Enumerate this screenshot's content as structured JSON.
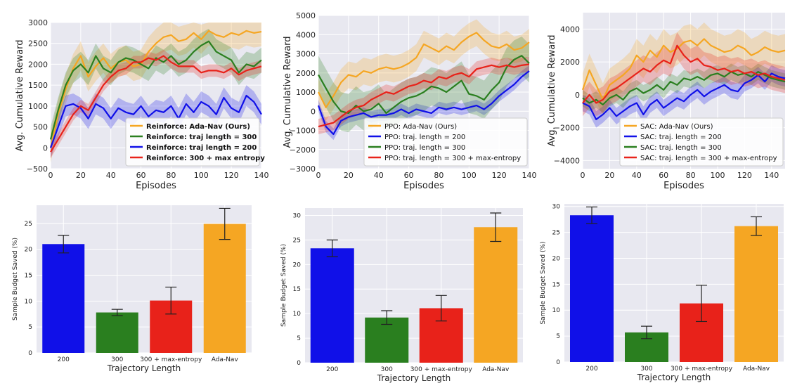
{
  "colors": {
    "adanav": "#f5a623",
    "len200": "#1010e8",
    "len300": "#2a7f1f",
    "maxent": "#e8221a",
    "panel": "#e8e8f0",
    "grid": "#ffffff"
  },
  "chart_data": [
    {
      "type": "line",
      "title": "",
      "xlabel": "Episodes",
      "ylabel": "Avg. Cumulative Reward",
      "xlim": [
        0,
        140
      ],
      "ylim": [
        -500,
        3000
      ],
      "xticks": [
        0,
        20,
        40,
        60,
        80,
        100,
        120,
        140
      ],
      "yticks": [
        -500,
        0,
        500,
        1000,
        1500,
        2000,
        2500,
        3000
      ],
      "legend": "bottom-right",
      "series": [
        {
          "name": "Reinforce: Ada-Nav (Ours)",
          "color": "adanav",
          "band": 350,
          "x": [
            0,
            5,
            10,
            15,
            20,
            25,
            30,
            35,
            40,
            45,
            50,
            55,
            60,
            65,
            70,
            75,
            80,
            85,
            90,
            95,
            100,
            105,
            110,
            115,
            120,
            125,
            130,
            135,
            140
          ],
          "y": [
            0,
            800,
            1400,
            1900,
            2200,
            1700,
            1950,
            2150,
            1900,
            2050,
            2100,
            1950,
            2000,
            2300,
            2500,
            2650,
            2700,
            2550,
            2600,
            2750,
            2600,
            2800,
            2700,
            2650,
            2750,
            2700,
            2800,
            2750,
            2780
          ]
        },
        {
          "name": "Reinforce: traj length = 300",
          "color": "len300",
          "band": 300,
          "x": [
            0,
            5,
            10,
            15,
            20,
            25,
            30,
            35,
            40,
            45,
            50,
            55,
            60,
            65,
            70,
            75,
            80,
            85,
            90,
            95,
            100,
            105,
            110,
            115,
            120,
            125,
            130,
            135,
            140
          ],
          "y": [
            200,
            900,
            1500,
            1850,
            2000,
            1800,
            2200,
            1900,
            1800,
            2050,
            2150,
            2100,
            2000,
            1900,
            2150,
            2050,
            2200,
            2000,
            2100,
            2300,
            2450,
            2550,
            2300,
            2200,
            2100,
            1800,
            2000,
            1950,
            2100
          ]
        },
        {
          "name": "Reinforce:  traj length = 200",
          "color": "len200",
          "band": 250,
          "x": [
            0,
            5,
            10,
            15,
            20,
            25,
            30,
            35,
            40,
            45,
            50,
            55,
            60,
            65,
            70,
            75,
            80,
            85,
            90,
            95,
            100,
            105,
            110,
            115,
            120,
            125,
            130,
            135,
            140
          ],
          "y": [
            0,
            500,
            1000,
            1050,
            950,
            700,
            1050,
            950,
            700,
            950,
            850,
            800,
            1000,
            750,
            900,
            850,
            1000,
            700,
            1050,
            850,
            1100,
            1000,
            800,
            1200,
            950,
            850,
            1250,
            1100,
            800
          ]
        },
        {
          "name": "Reinforce: 300 + max entropy",
          "color": "maxent",
          "band": 150,
          "x": [
            0,
            5,
            10,
            15,
            20,
            25,
            30,
            35,
            40,
            45,
            50,
            55,
            60,
            65,
            70,
            75,
            80,
            85,
            90,
            95,
            100,
            105,
            110,
            115,
            120,
            125,
            130,
            135,
            140
          ],
          "y": [
            -100,
            200,
            500,
            800,
            1000,
            900,
            1200,
            1500,
            1700,
            1850,
            1900,
            2050,
            2050,
            2150,
            2100,
            2200,
            2050,
            1950,
            1950,
            1950,
            1800,
            1850,
            1850,
            1800,
            1900,
            1750,
            1850,
            1900,
            1950
          ]
        }
      ]
    },
    {
      "type": "line",
      "title": "",
      "xlabel": "Episodes",
      "ylabel": "Avg. Cumulative Reward",
      "xlim": [
        0,
        140
      ],
      "ylim": [
        -3000,
        5000
      ],
      "xticks": [
        0,
        20,
        40,
        60,
        80,
        100,
        120,
        140
      ],
      "yticks": [
        -3000,
        -2000,
        -1000,
        0,
        1000,
        2000,
        3000,
        4000,
        5000
      ],
      "legend": "bottom-right",
      "series": [
        {
          "name": "PPO: Ada-Nav (Ours)",
          "color": "adanav",
          "band": 700,
          "x": [
            0,
            5,
            10,
            15,
            20,
            25,
            30,
            35,
            40,
            45,
            50,
            55,
            60,
            65,
            70,
            75,
            80,
            85,
            90,
            95,
            100,
            105,
            110,
            115,
            120,
            125,
            130,
            135,
            140
          ],
          "y": [
            1000,
            200,
            800,
            1500,
            1900,
            1800,
            2100,
            2000,
            2200,
            2300,
            2200,
            2300,
            2500,
            2800,
            3500,
            3300,
            3100,
            3400,
            3200,
            3600,
            3900,
            4100,
            3700,
            3400,
            3300,
            3500,
            3200,
            3300,
            3600
          ]
        },
        {
          "name": "PPO: traj. length = 200",
          "color": "len200",
          "band": 300,
          "x": [
            0,
            5,
            10,
            15,
            20,
            25,
            30,
            35,
            40,
            45,
            50,
            55,
            60,
            65,
            70,
            75,
            80,
            85,
            90,
            95,
            100,
            105,
            110,
            115,
            120,
            125,
            130,
            135,
            140
          ],
          "y": [
            300,
            -800,
            -1200,
            -500,
            -300,
            -200,
            -100,
            -300,
            -200,
            -200,
            -100,
            100,
            -100,
            100,
            0,
            -100,
            200,
            100,
            200,
            100,
            200,
            300,
            100,
            400,
            800,
            1100,
            1400,
            1800,
            2100
          ]
        },
        {
          "name": "PPO: traj. length = 300",
          "color": "len300",
          "band": 1000,
          "x": [
            0,
            5,
            10,
            15,
            20,
            25,
            30,
            35,
            40,
            45,
            50,
            55,
            60,
            65,
            70,
            75,
            80,
            85,
            90,
            95,
            100,
            105,
            110,
            115,
            120,
            125,
            130,
            135,
            140
          ],
          "y": [
            1900,
            1200,
            500,
            0,
            -100,
            300,
            0,
            100,
            400,
            -100,
            200,
            500,
            700,
            800,
            1000,
            1300,
            1200,
            1000,
            1300,
            1600,
            900,
            800,
            600,
            1100,
            1500,
            2300,
            2700,
            2900,
            2500
          ]
        },
        {
          "name": "PPO:  traj. length = 300 + max-entropy",
          "color": "maxent",
          "band": 400,
          "x": [
            0,
            5,
            10,
            15,
            20,
            25,
            30,
            35,
            40,
            45,
            50,
            55,
            60,
            65,
            70,
            75,
            80,
            85,
            90,
            95,
            100,
            105,
            110,
            115,
            120,
            125,
            130,
            135,
            140
          ],
          "y": [
            -800,
            -700,
            -600,
            -300,
            0,
            200,
            300,
            600,
            800,
            1000,
            900,
            1100,
            1300,
            1400,
            1600,
            1500,
            1800,
            1700,
            1900,
            2000,
            1800,
            2200,
            2300,
            2400,
            2300,
            2400,
            2300,
            2400,
            2450
          ]
        }
      ]
    },
    {
      "type": "line",
      "title": "",
      "xlabel": "Episodes",
      "ylabel": "Avg. Cumulative Reward",
      "xlim": [
        0,
        150
      ],
      "ylim": [
        -4500,
        5000
      ],
      "xticks": [
        0,
        20,
        40,
        60,
        80,
        100,
        120,
        140
      ],
      "yticks": [
        -4000,
        -2000,
        0,
        2000,
        4000
      ],
      "legend": "bottom-right",
      "series": [
        {
          "name": "SAC: Ada-Nav (Ours)",
          "color": "adanav",
          "band": 1000,
          "x": [
            0,
            5,
            10,
            15,
            20,
            25,
            30,
            35,
            40,
            45,
            50,
            55,
            60,
            65,
            70,
            75,
            80,
            85,
            90,
            95,
            100,
            105,
            110,
            115,
            120,
            125,
            130,
            135,
            140,
            145,
            150
          ],
          "y": [
            300,
            1500,
            600,
            -300,
            600,
            900,
            1200,
            1600,
            2400,
            2000,
            2700,
            2300,
            3000,
            2600,
            2800,
            3200,
            3300,
            3000,
            3400,
            3000,
            2800,
            2600,
            2700,
            3000,
            2800,
            2400,
            2600,
            2900,
            2700,
            2600,
            2700
          ]
        },
        {
          "name": "SAC: traj. length = 200",
          "color": "len200",
          "band": 500,
          "x": [
            0,
            5,
            10,
            15,
            20,
            25,
            30,
            35,
            40,
            45,
            50,
            55,
            60,
            65,
            70,
            75,
            80,
            85,
            90,
            95,
            100,
            105,
            110,
            115,
            120,
            125,
            130,
            135,
            140,
            145,
            150
          ],
          "y": [
            -500,
            -700,
            -1500,
            -1200,
            -800,
            -1300,
            -1000,
            -700,
            -500,
            -1200,
            -600,
            -300,
            -800,
            -500,
            -200,
            -400,
            0,
            300,
            -100,
            200,
            400,
            600,
            300,
            200,
            700,
            900,
            1200,
            800,
            1300,
            1100,
            1000
          ]
        },
        {
          "name": "SAC: traj. length = 300",
          "color": "len300",
          "band": 500,
          "x": [
            0,
            5,
            10,
            15,
            20,
            25,
            30,
            35,
            40,
            45,
            50,
            55,
            60,
            65,
            70,
            75,
            80,
            85,
            90,
            95,
            100,
            105,
            110,
            115,
            120,
            125,
            130,
            135,
            140,
            145,
            150
          ],
          "y": [
            -200,
            -500,
            -300,
            -600,
            -200,
            0,
            -300,
            200,
            400,
            100,
            300,
            600,
            300,
            800,
            600,
            1000,
            900,
            1100,
            900,
            1200,
            1300,
            1100,
            1400,
            1200,
            1300,
            1100,
            1400,
            1200,
            1000,
            900,
            800
          ]
        },
        {
          "name": "SAC:  traj. length = 300 + max-entropy",
          "color": "maxent",
          "band": 800,
          "x": [
            0,
            5,
            10,
            15,
            20,
            25,
            30,
            35,
            40,
            45,
            50,
            55,
            60,
            65,
            70,
            75,
            80,
            85,
            90,
            95,
            100,
            105,
            110,
            115,
            120,
            125,
            130,
            135,
            140,
            145,
            150
          ],
          "y": [
            -500,
            0,
            -500,
            -300,
            200,
            400,
            700,
            1000,
            1300,
            1600,
            1400,
            1800,
            2100,
            1900,
            3000,
            2400,
            2000,
            2200,
            1800,
            1700,
            1500,
            1600,
            1400,
            1500,
            1300,
            1400,
            1200,
            1300,
            1100,
            1000,
            900
          ]
        }
      ]
    },
    {
      "type": "bar",
      "xlabel": "Trajectory Length",
      "ylabel": "Sample Budget Saved (%)",
      "ylim": [
        0,
        28.5
      ],
      "yticks": [
        0,
        5,
        10,
        15,
        20,
        25
      ],
      "categories": [
        "200",
        "300",
        "300 + max-entropy",
        "Ada-Nav"
      ],
      "values": [
        21.0,
        7.8,
        10.1,
        24.9
      ],
      "errors": [
        1.7,
        0.6,
        2.6,
        3.0
      ],
      "colors": [
        "len200",
        "len300",
        "maxent",
        "adanav"
      ]
    },
    {
      "type": "bar",
      "xlabel": "Trajectory Length",
      "ylabel": "Sample Budget Saved (%)",
      "ylim": [
        0,
        31.5
      ],
      "yticks": [
        0,
        5,
        10,
        15,
        20,
        25,
        30
      ],
      "categories": [
        "200",
        "300",
        "300 + max-entropy",
        "Ada-Nav"
      ],
      "values": [
        23.3,
        9.2,
        11.1,
        27.6
      ],
      "errors": [
        1.7,
        1.4,
        2.6,
        2.9
      ],
      "colors": [
        "len200",
        "len300",
        "maxent",
        "adanav"
      ]
    },
    {
      "type": "bar",
      "xlabel": "Trajectory Length",
      "ylabel": "Sample Budget Saved (%)",
      "ylim": [
        0,
        30.5
      ],
      "yticks": [
        0,
        5,
        10,
        15,
        20,
        25,
        30
      ],
      "categories": [
        "200",
        "300",
        "300 + max-entropy",
        "Ada-Nav"
      ],
      "values": [
        28.3,
        5.7,
        11.3,
        26.2
      ],
      "errors": [
        1.6,
        1.2,
        3.5,
        1.8
      ],
      "colors": [
        "len200",
        "len300",
        "maxent",
        "adanav"
      ]
    }
  ]
}
